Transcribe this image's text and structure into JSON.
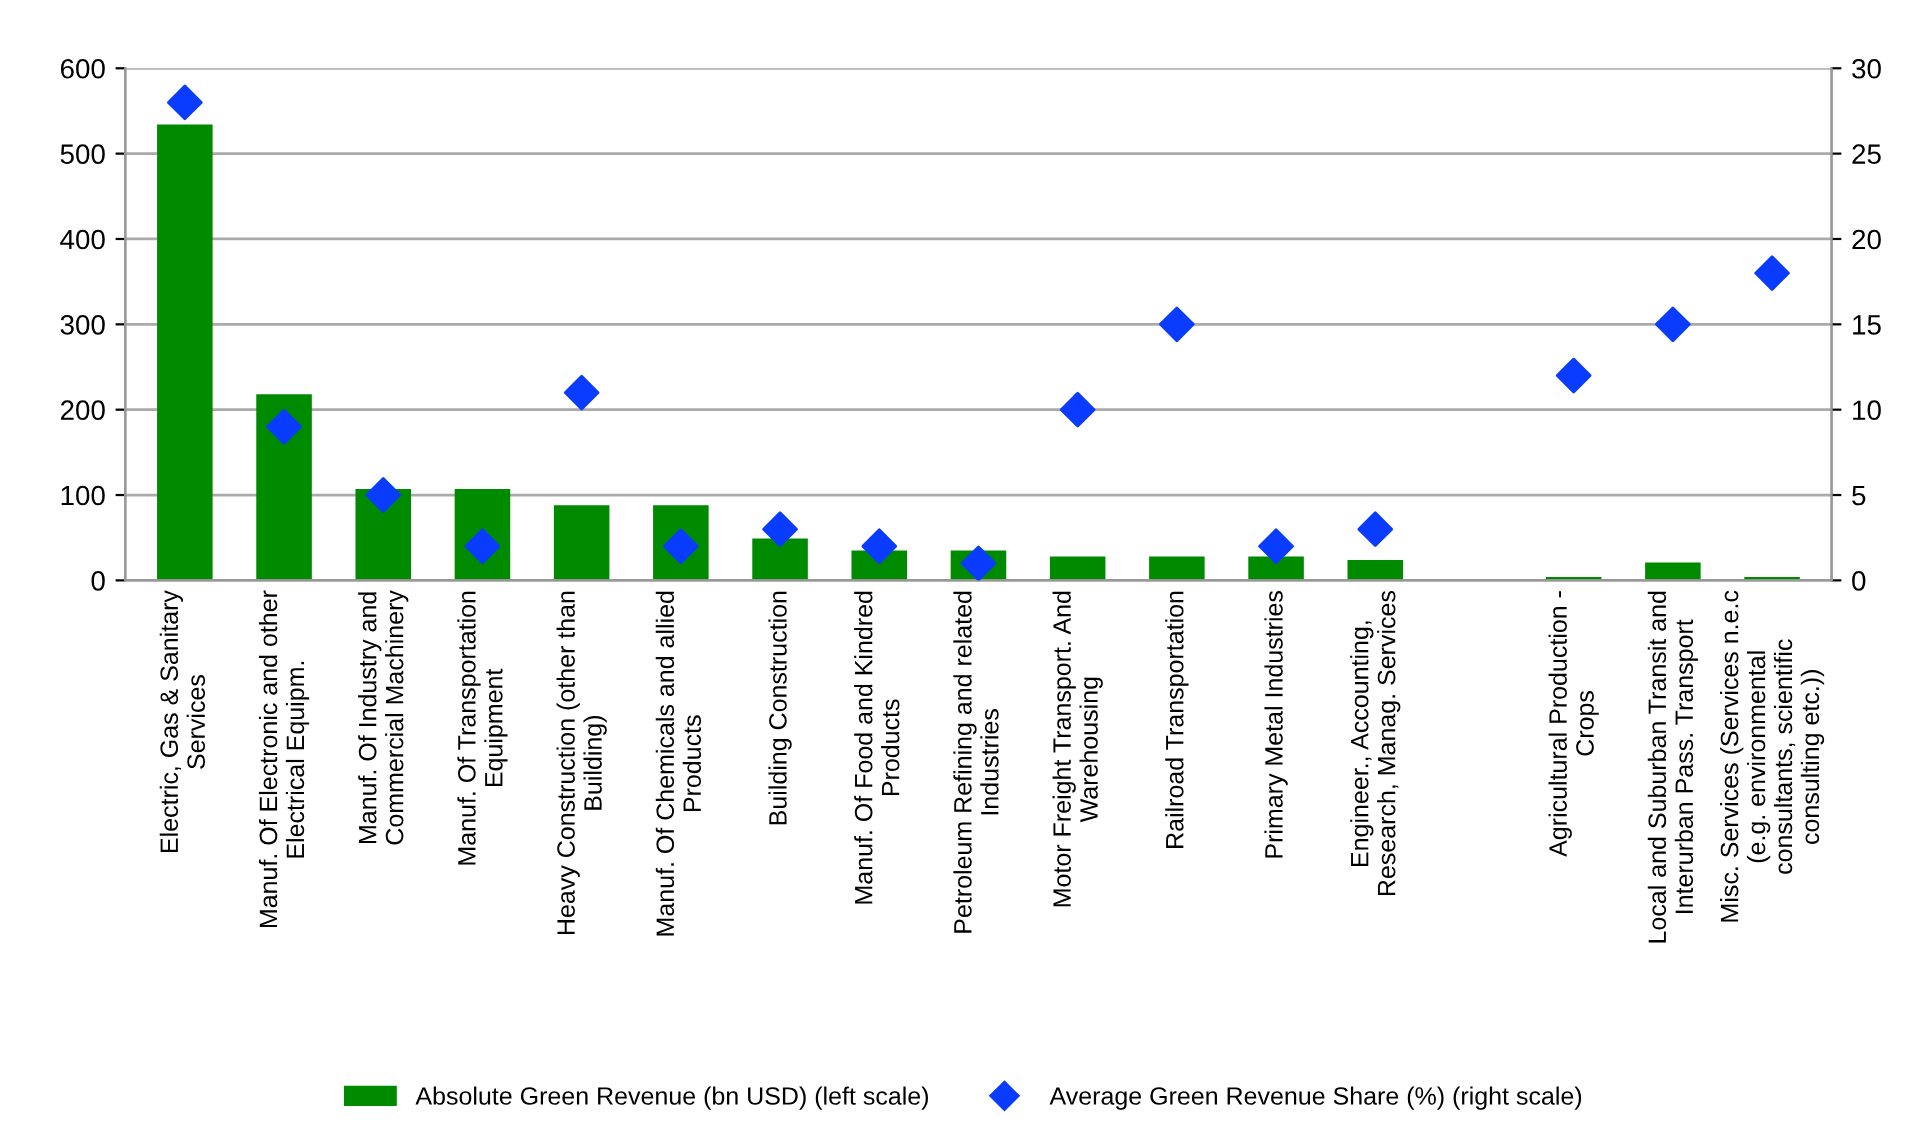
{
  "chart_data": {
    "type": "bar",
    "categories": [
      "Electric, Gas & Sanitary Services",
      "Manuf. Of Electronic and other Electrical Equipm.",
      "Manuf. Of Industry and Commercial Machinery",
      "Manuf. Of Transportation Equipment",
      "Heavy Construction (other than Building)",
      "Manuf. Of Chemicals and allied Products",
      "Building Construction",
      "Manuf. Of Food and Kindred Products",
      "Petroleum Refining and related Industries",
      "Motor Freight Transport. And Warehousing",
      "Railroad Transportation",
      "Primary Metal Industries",
      "Engineer., Accounting, Research, Manag. Services",
      null,
      "Agricultural Production - Crops",
      "Local and Suburban Transit and Interurban Pass. Transport",
      "Misc. Services (Services n.e.c (e.g. environmental consultants, scientific consulting etc.))"
    ],
    "series": [
      {
        "name": "Absolute Green Revenue (bn USD) (left scale)",
        "color": "#008a00",
        "values": [
          534,
          218,
          107,
          107,
          88,
          88,
          49,
          35,
          35,
          28,
          28,
          28,
          24,
          null,
          4,
          21,
          4
        ]
      },
      {
        "name": "Average Green Revenue Share (%) (right scale)",
        "type": "scatter",
        "axis": "y2",
        "color": "#0a3cff",
        "marker": "diamond",
        "values": [
          28,
          9,
          5,
          2,
          11,
          2,
          3,
          2,
          1,
          10,
          15,
          2,
          3,
          null,
          12,
          15,
          18
        ]
      }
    ],
    "ylim": [
      0,
      600
    ],
    "yticks": [
      0,
      100,
      200,
      300,
      400,
      500,
      600
    ],
    "y2lim": [
      0,
      30
    ],
    "y2ticks": [
      0,
      5,
      10,
      15,
      20,
      25,
      30
    ],
    "grid": "y",
    "legend": "bottom"
  }
}
